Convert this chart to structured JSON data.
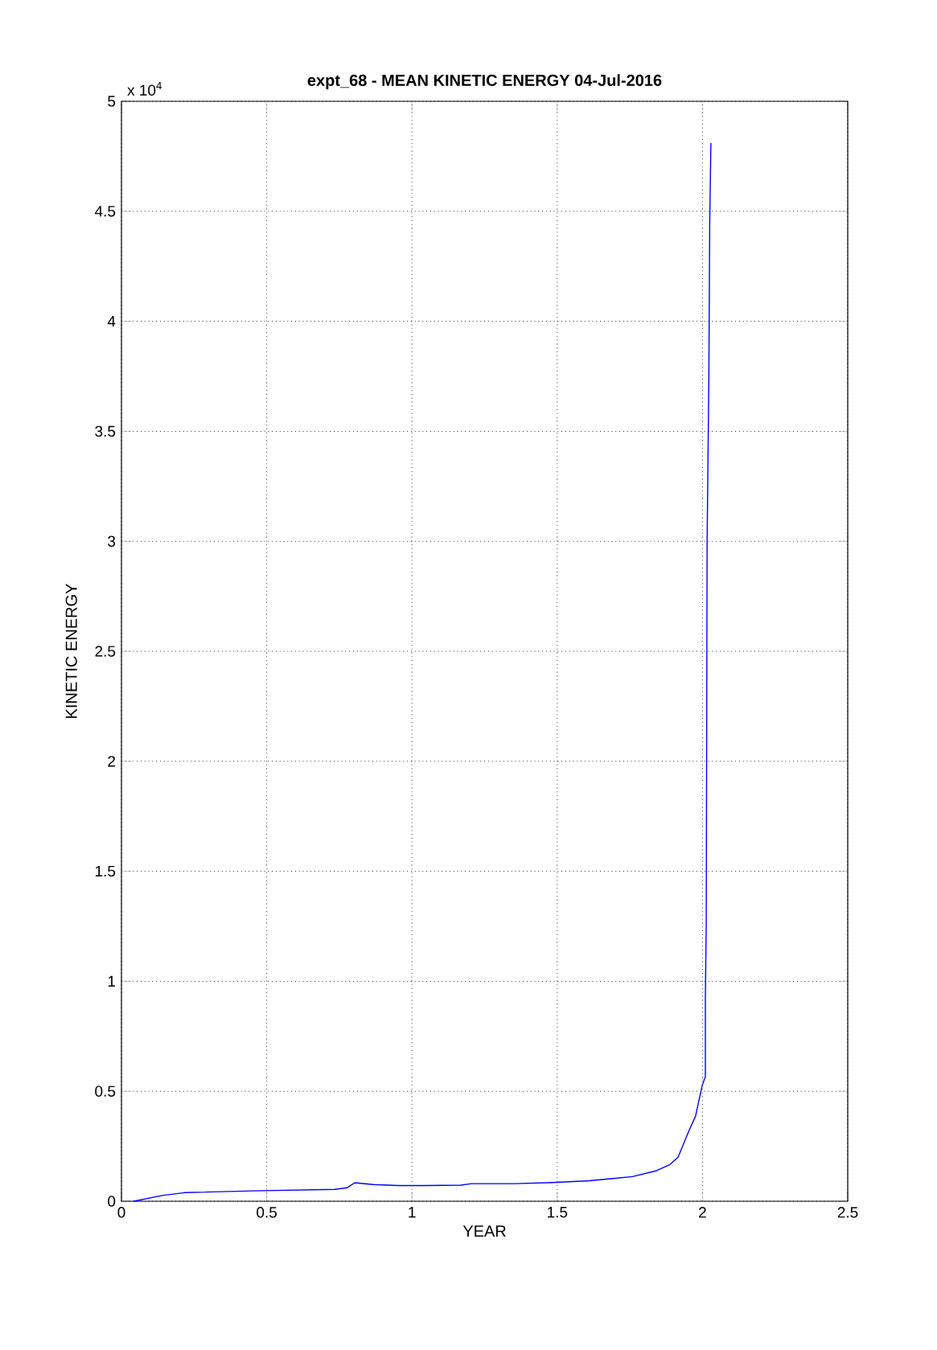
{
  "chart_data": {
    "type": "line",
    "title": "expt_68 - MEAN KINETIC ENERGY 04-Jul-2016",
    "xlabel": "YEAR",
    "ylabel": "KINETIC ENERGY",
    "annotations": [
      "x 10$^{4}$"
    ],
    "x": [
      0.042,
      0.143,
      0.217,
      0.448,
      0.734,
      0.776,
      0.803,
      0.868,
      0.956,
      1.039,
      1.168,
      1.205,
      1.353,
      1.482,
      1.611,
      1.759,
      1.842,
      1.888,
      1.916,
      1.953,
      1.976,
      1.999,
      2.01,
      2.01,
      2.013,
      2.016,
      2.022,
      2.025,
      2.029
    ],
    "series": [
      {
        "color": "#0000ff",
        "values": [
          0,
          0.027,
          0.039,
          0.047,
          0.054,
          0.061,
          0.084,
          0.076,
          0.071,
          0.071,
          0.073,
          0.08,
          0.08,
          0.085,
          0.093,
          0.112,
          0.139,
          0.167,
          0.2,
          0.319,
          0.386,
          0.526,
          0.566,
          0.925,
          1.26,
          3,
          3.75,
          4.45,
          4.81
        ]
      }
    ],
    "xlim": [
      0,
      2.5
    ],
    "xticks": [
      0,
      0.5,
      1,
      1.5,
      2,
      2.5
    ],
    "ylim": [
      0,
      5
    ],
    "yticks": [
      0,
      0.5,
      1,
      1.5,
      2,
      2.5,
      3,
      3.5,
      4,
      4.5,
      5
    ],
    "grid": true,
    "line_style": "solid",
    "marker": "none"
  }
}
